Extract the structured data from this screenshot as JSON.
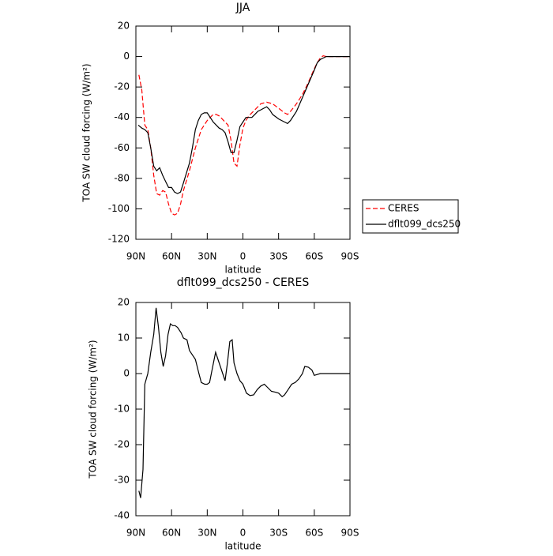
{
  "chart_data": [
    {
      "type": "line",
      "title": "JJA",
      "xlabel": "latitude",
      "ylabel": "TOA SW cloud forcing (W/m²)",
      "xlim": [
        90,
        -90
      ],
      "ylim": [
        -120,
        20
      ],
      "xticks": [
        {
          "value": 90,
          "label": "90N"
        },
        {
          "value": 60,
          "label": "60N"
        },
        {
          "value": 30,
          "label": "30N"
        },
        0,
        {
          "value": -30,
          "label": "30S"
        },
        {
          "value": -60,
          "label": "60S"
        },
        {
          "value": -90,
          "label": "90S"
        }
      ],
      "yticks": [
        -120,
        -100,
        -80,
        -60,
        -40,
        -20,
        0,
        20
      ],
      "legend": "right",
      "series": [
        {
          "name": "CERES",
          "color": "#ff0000",
          "style": "dashed",
          "x": [
            87.5,
            85,
            82.5,
            80,
            77.5,
            75,
            72.5,
            70,
            67.5,
            65,
            62.5,
            60,
            57.5,
            55,
            52.5,
            50,
            45,
            40,
            35,
            30,
            27.5,
            25,
            22.5,
            20,
            17.5,
            15,
            12.5,
            10,
            7.5,
            5,
            2.5,
            0,
            -2.5,
            -5,
            -10,
            -15,
            -20,
            -25,
            -30,
            -35,
            -37.5,
            -40,
            -45,
            -50,
            -55,
            -60,
            -62.5,
            -65,
            -67.5,
            -70,
            -75,
            -80,
            -85,
            -90
          ],
          "values": [
            -12,
            -22,
            -45,
            -48,
            -60,
            -78,
            -90,
            -91,
            -88,
            -89,
            -97,
            -103,
            -104,
            -103,
            -97,
            -88,
            -75,
            -60,
            -48,
            -42,
            -40,
            -38,
            -38,
            -39,
            -41,
            -43,
            -45,
            -55,
            -70,
            -72,
            -58,
            -47,
            -42,
            -39,
            -35,
            -31,
            -30,
            -31,
            -34,
            -37,
            -38,
            -36,
            -31,
            -25,
            -17,
            -8,
            -4,
            -1,
            0.5,
            0,
            0,
            0,
            0,
            0
          ]
        },
        {
          "name": "dflt099_dcs250",
          "color": "#000000",
          "style": "solid",
          "x": [
            88,
            85,
            82.5,
            80,
            77.5,
            75,
            72.5,
            70,
            67.5,
            65,
            62.5,
            60,
            57.5,
            55,
            52.5,
            50,
            45,
            42.5,
            40,
            37.5,
            35,
            32.5,
            30,
            27.5,
            25,
            20,
            17.5,
            15,
            12.5,
            10,
            7.5,
            5,
            2.5,
            0,
            -2.5,
            -5,
            -7.5,
            -10,
            -12.5,
            -15,
            -17.5,
            -20,
            -22.5,
            -25,
            -30,
            -35,
            -37.5,
            -40,
            -45,
            -50,
            -55,
            -60,
            -62.5,
            -65,
            -67.5,
            -70,
            -75,
            -80,
            -85,
            -90
          ],
          "values": [
            -45,
            -47,
            -48,
            -50,
            -60,
            -72,
            -75,
            -73,
            -78,
            -82,
            -86,
            -86,
            -89,
            -90,
            -89,
            -83,
            -70,
            -60,
            -48,
            -42,
            -38,
            -37,
            -37,
            -40,
            -43,
            -47,
            -48,
            -50,
            -56,
            -63,
            -63,
            -55,
            -46,
            -43,
            -40,
            -40,
            -40,
            -38,
            -36,
            -35,
            -34,
            -33,
            -35,
            -38,
            -41,
            -43,
            -44,
            -42,
            -36,
            -27,
            -18,
            -9,
            -4,
            -2,
            -1,
            0,
            0,
            0,
            0,
            0
          ]
        }
      ]
    },
    {
      "type": "line",
      "title": "dflt099_dcs250 - CERES",
      "xlabel": "latitude",
      "ylabel": "TOA SW cloud forcing (W/m²)",
      "xlim": [
        90,
        -90
      ],
      "ylim": [
        -40,
        20
      ],
      "xticks": [
        {
          "value": 90,
          "label": "90N"
        },
        {
          "value": 60,
          "label": "60N"
        },
        {
          "value": 30,
          "label": "30N"
        },
        0,
        {
          "value": -30,
          "label": "30S"
        },
        {
          "value": -60,
          "label": "60S"
        },
        {
          "value": -90,
          "label": "90S"
        }
      ],
      "yticks": [
        -40,
        -30,
        -20,
        -10,
        0,
        10,
        20
      ],
      "color": "#000000",
      "x": [
        87.5,
        86,
        84,
        82.5,
        80,
        77.5,
        75,
        73,
        71,
        69,
        67,
        65,
        63,
        61,
        59,
        57,
        55,
        52,
        50,
        47,
        45,
        40,
        37,
        35,
        32,
        30,
        28,
        26,
        23,
        19,
        17,
        15,
        13,
        11,
        9,
        7.5,
        5,
        2.5,
        0,
        -3,
        -6,
        -9,
        -12,
        -15,
        -18,
        -21,
        -24,
        -27,
        -30,
        -33,
        -35,
        -38,
        -41,
        -44,
        -47,
        -50,
        -52,
        -55,
        -58,
        -60,
        -65,
        -70,
        -80,
        -90
      ],
      "values": [
        -33,
        -35,
        -27,
        -3,
        0,
        6,
        11,
        18.5,
        13,
        6,
        2,
        5,
        11,
        14,
        13.5,
        13.5,
        13,
        11.5,
        10,
        9.5,
        6.5,
        4,
        0,
        -2.5,
        -3,
        -3,
        -2.5,
        1,
        6,
        2,
        0,
        -2,
        3,
        9,
        9.5,
        3,
        0,
        -2,
        -3,
        -5.5,
        -6.2,
        -6,
        -4.5,
        -3.5,
        -3,
        -4,
        -5,
        -5.2,
        -5.5,
        -6.5,
        -6,
        -4.5,
        -3,
        -2.5,
        -1.5,
        0,
        2,
        1.8,
        1,
        -0.5,
        0,
        0,
        0,
        0
      ]
    }
  ]
}
